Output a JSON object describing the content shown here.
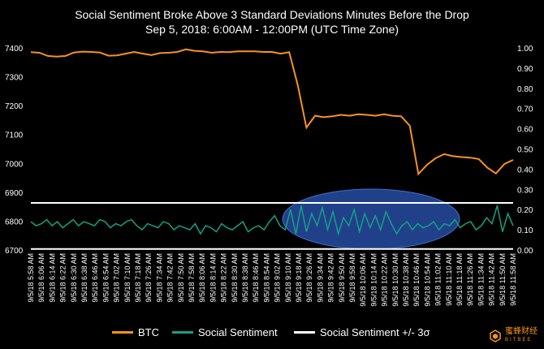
{
  "chart_data": {
    "type": "line",
    "title": "Social Sentiment Broke Above 3 Standard Deviations Minutes Before the Drop",
    "subtitle": "Sep 5, 2018: 6:00AM - 12:00PM  (UTC Time Zone)",
    "left_axis": {
      "ylim": [
        6700,
        7400
      ],
      "ticks": [
        "7400",
        "7300",
        "7200",
        "7100",
        "7000",
        "6900",
        "6800",
        "6700"
      ]
    },
    "right_axis": {
      "ylim": [
        0.0,
        1.0
      ],
      "ticks": [
        "1.00",
        "0.90",
        "0.80",
        "0.70",
        "0.60",
        "0.50",
        "0.40",
        "0.30",
        "0.20",
        "0.10",
        "0.00"
      ]
    },
    "x_tick_labels": [
      "9/5/18 5:58 AM",
      "9/5/18 6:06 AM",
      "9/5/18 6:14 AM",
      "9/5/18 6:22 AM",
      "9/5/18 6:30 AM",
      "9/5/18 6:38 AM",
      "9/5/18 6:46 AM",
      "9/5/18 6:54 AM",
      "9/5/18 7:02 AM",
      "9/5/18 7:10 AM",
      "9/5/18 7:18 AM",
      "9/5/18 7:26 AM",
      "9/5/18 7:34 AM",
      "9/5/18 7:42 AM",
      "9/5/18 7:50 AM",
      "9/5/18 7:58 AM",
      "9/5/18 8:06 AM",
      "9/5/18 8:14 AM",
      "9/5/18 8:22 AM",
      "9/5/18 8:30 AM",
      "9/5/18 8:38 AM",
      "9/5/18 8:46 AM",
      "9/5/18 8:54 AM",
      "9/5/18 9:02 AM",
      "9/5/18 9:10 AM",
      "9/5/18 9:18 AM",
      "9/5/18 9:26 AM",
      "9/5/18 9:34 AM",
      "9/5/18 9:42 AM",
      "9/5/18 9:50 AM",
      "9/5/18 9:58 AM",
      "9/5/18 10:06 AM",
      "9/5/18 10:14 AM",
      "9/5/18 10:22 AM",
      "9/5/18 10:30 AM",
      "9/5/18 10:38 AM",
      "9/5/18 10:46 AM",
      "9/5/18 10:54 AM",
      "9/5/18 11:02 AM",
      "9/5/18 11:10 AM",
      "9/5/18 11:18 AM",
      "9/5/18 11:26 AM",
      "9/5/18 11:34 AM",
      "9/5/18 11:42 AM",
      "9/5/18 11:50 AM",
      "9/5/18 11:58 AM"
    ],
    "series": [
      {
        "name": "BTC",
        "axis": "left",
        "color": "#f7931e",
        "values": [
          7385,
          7383,
          7372,
          7370,
          7372,
          7384,
          7387,
          7386,
          7384,
          7373,
          7374,
          7380,
          7386,
          7380,
          7375,
          7382,
          7383,
          7386,
          7395,
          7390,
          7388,
          7383,
          7386,
          7385,
          7388,
          7388,
          7388,
          7386,
          7386,
          7380,
          7385,
          7270,
          7124,
          7165,
          7160,
          7163,
          7168,
          7165,
          7170,
          7168,
          7165,
          7170,
          7165,
          7163,
          7130,
          6963,
          6995,
          7018,
          7032,
          7025,
          7022,
          7020,
          7015,
          6985,
          6965,
          6998,
          7012
        ]
      },
      {
        "name": "Social Sentiment",
        "axis": "right",
        "color": "#16a085",
        "values": [
          0.14,
          0.12,
          0.13,
          0.15,
          0.12,
          0.14,
          0.11,
          0.13,
          0.15,
          0.12,
          0.14,
          0.13,
          0.12,
          0.15,
          0.14,
          0.11,
          0.13,
          0.12,
          0.14,
          0.15,
          0.12,
          0.1,
          0.13,
          0.12,
          0.11,
          0.14,
          0.13,
          0.1,
          0.12,
          0.11,
          0.1,
          0.13,
          0.08,
          0.12,
          0.11,
          0.09,
          0.13,
          0.11,
          0.1,
          0.12,
          0.14,
          0.09,
          0.11,
          0.12,
          0.1,
          0.14,
          0.17,
          0.12,
          0.1,
          0.2,
          0.08,
          0.22,
          0.09,
          0.18,
          0.12,
          0.21,
          0.1,
          0.19,
          0.08,
          0.16,
          0.12,
          0.2,
          0.09,
          0.18,
          0.11,
          0.17,
          0.1,
          0.19,
          0.13,
          0.08,
          0.12,
          0.14,
          0.1,
          0.13,
          0.11,
          0.12,
          0.14,
          0.1,
          0.13,
          0.12,
          0.15,
          0.11,
          0.13,
          0.14,
          0.1,
          0.12,
          0.16,
          0.13,
          0.22,
          0.09,
          0.18,
          0.12
        ]
      },
      {
        "name": "Social Sentiment +/- 3σ",
        "axis": "right",
        "color": "#ffffff",
        "bands": [
          0.233,
          0.005
        ]
      }
    ],
    "legend": "bottom",
    "grid": false
  },
  "brand": {
    "name_cn": "蜜蜂财经",
    "name_en": "BITBEE"
  }
}
